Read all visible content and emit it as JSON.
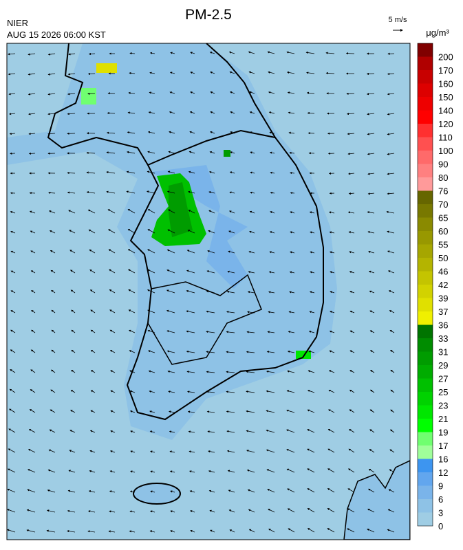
{
  "header": {
    "title": "PM-2.5",
    "agency": "NIER",
    "datetime": "AUG 15 2026 06:00 KST"
  },
  "wind_scale": {
    "label": "5 m/s"
  },
  "legend": {
    "unit": "μg/m³",
    "labels": [
      0,
      3,
      6,
      9,
      12,
      16,
      17,
      19,
      21,
      23,
      25,
      27,
      29,
      31,
      33,
      36,
      37,
      39,
      42,
      46,
      50,
      55,
      60,
      65,
      70,
      76,
      80,
      90,
      100,
      110,
      120,
      140,
      150,
      160,
      170,
      200
    ],
    "colors": [
      "#9fcde4",
      "#8ec2e6",
      "#7ab4ea",
      "#62a6ee",
      "#3d95f0",
      "#a0ff9a",
      "#70ff70",
      "#00ff00",
      "#00e600",
      "#00d200",
      "#00c000",
      "#00ac00",
      "#009c00",
      "#008c00",
      "#007400",
      "#f0f000",
      "#e0e000",
      "#d2d200",
      "#c4c400",
      "#b4b400",
      "#a6a600",
      "#989800",
      "#8a8a00",
      "#787800",
      "#666600",
      "#ff9a9a",
      "#ff8080",
      "#ff6a6a",
      "#ff5050",
      "#ff3030",
      "#ff0000",
      "#ee0000",
      "#dd0000",
      "#c80000",
      "#b00000",
      "#800000"
    ]
  }
}
